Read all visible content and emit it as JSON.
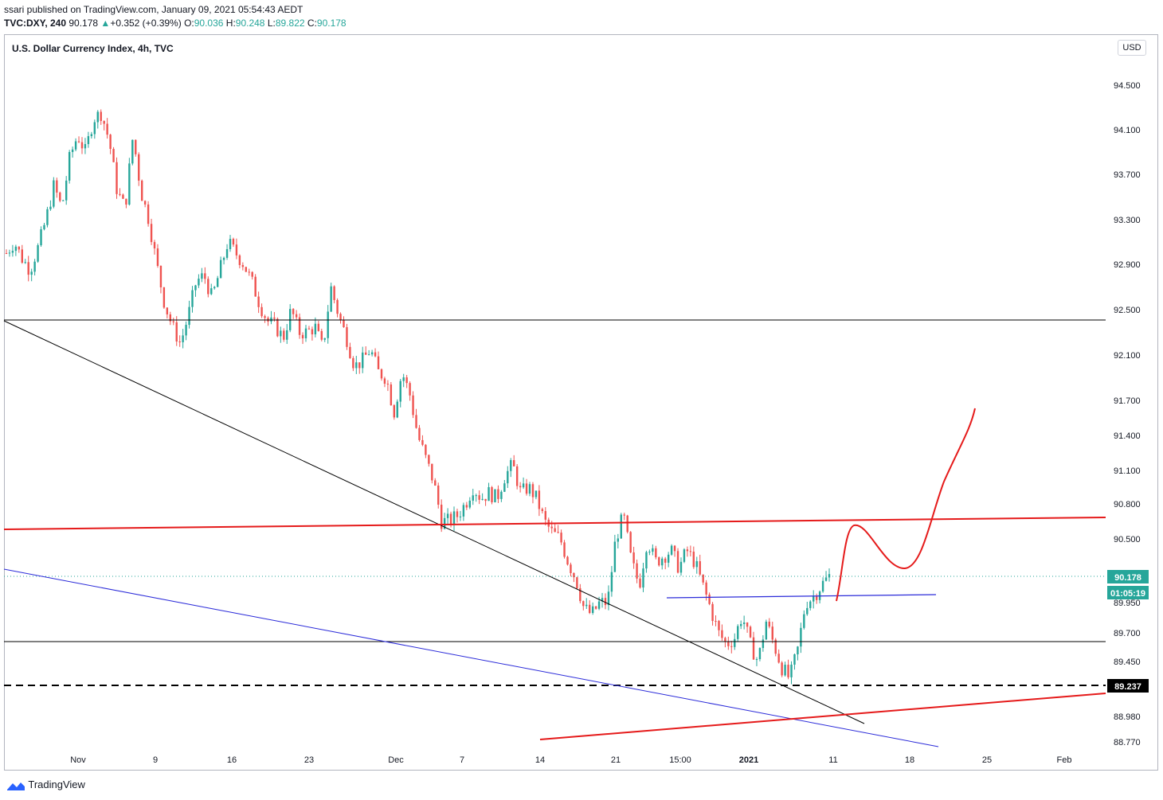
{
  "header": {
    "published_line": "ssari published on TradingView.com, January 09, 2021 05:54:43 AEDT",
    "symbol": "TVC:DXY, 240",
    "last": "90.178",
    "change": "+0.352 (+0.39%)",
    "o_label": "O:",
    "o_value": "90.036",
    "h_label": "H:",
    "h_value": "90.248",
    "l_label": "L:",
    "l_value": "89.822",
    "c_label": "C:",
    "c_value": "90.178"
  },
  "chart_title": "U.S. Dollar Currency Index, 4h, TVC",
  "currency_button": "USD",
  "footer": {
    "brand": "TradingView",
    "logo_icon": "tradingview-logo-icon"
  },
  "colors": {
    "up": "#26a69a",
    "down": "#ef5350",
    "red_line": "#e51a1a",
    "blue_line": "#2b2bd9",
    "black_line": "#000000"
  },
  "chart_data": {
    "type": "candlestick",
    "title": "U.S. Dollar Currency Index, 4h, TVC",
    "ylim": [
      88.72,
      94.8
    ],
    "y_ticks": [
      "94.500",
      "94.100",
      "93.700",
      "93.300",
      "92.900",
      "92.500",
      "92.100",
      "91.700",
      "91.400",
      "91.100",
      "90.800",
      "90.500",
      "89.950",
      "89.700",
      "89.450",
      "88.980",
      "88.770"
    ],
    "x_ticks": [
      "Nov",
      "9",
      "16",
      "23",
      "Dec",
      "7",
      "14",
      "21",
      "15:00",
      "2021",
      "11",
      "18",
      "25",
      "Feb"
    ],
    "price_labels": {
      "last": "90.178",
      "countdown": "01:05:19",
      "level": "89.237"
    },
    "close_path": [
      93.0,
      93.1,
      92.95,
      92.85,
      93.05,
      93.3,
      93.6,
      93.4,
      93.85,
      94.05,
      93.9,
      94.2,
      94.25,
      94.0,
      93.55,
      93.4,
      94.05,
      93.55,
      93.3,
      92.9,
      92.55,
      92.35,
      92.2,
      92.45,
      92.75,
      92.8,
      92.6,
      92.85,
      93.1,
      93.0,
      92.9,
      92.75,
      92.55,
      92.4,
      92.35,
      92.25,
      92.5,
      92.3,
      92.3,
      92.35,
      92.15,
      92.7,
      92.45,
      92.25,
      92.0,
      92.05,
      92.15,
      91.95,
      91.9,
      91.6,
      91.95,
      91.75,
      91.4,
      91.2,
      91.0,
      90.65,
      90.65,
      90.7,
      90.8,
      90.95,
      90.85,
      90.9,
      90.85,
      91.05,
      91.15,
      90.9,
      90.95,
      90.85,
      90.65,
      90.55,
      90.5,
      90.3,
      90.15,
      89.9,
      89.85,
      89.95,
      89.95,
      90.5,
      90.7,
      90.3,
      90.1,
      90.5,
      90.3,
      90.35,
      90.4,
      90.25,
      90.4,
      90.3,
      90.1,
      89.9,
      89.7,
      89.6,
      89.65,
      89.85,
      89.6,
      89.45,
      89.8,
      89.6,
      89.4,
      89.3,
      89.55,
      89.95,
      90.0,
      90.1,
      90.178
    ],
    "annotations": {
      "hlines": [
        92.45,
        89.7
      ],
      "dashed_level": 89.237,
      "red_resistance": "line from ~90.58 to ~90.68",
      "red_support": "line from ~88.77 to ~89.17",
      "black_trendline": "descending from ~92.45 to ~88.93",
      "blue_trendline": "descending from ~90.2 to ~88.75",
      "blue_short_line": "~90.01 to ~90.04",
      "projection": "red freehand curve rising to ~91.65"
    }
  }
}
